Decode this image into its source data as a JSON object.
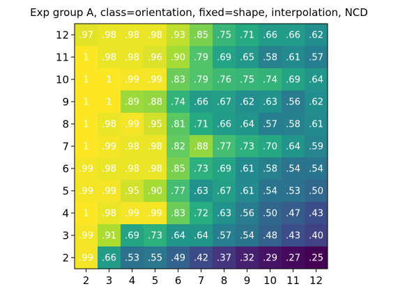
{
  "chart_data": {
    "type": "heatmap",
    "title": "Exp group A, class=orientation, fixed=shape, interpolation, NCD",
    "x_categories": [
      "2",
      "3",
      "4",
      "5",
      "6",
      "7",
      "8",
      "9",
      "10",
      "11",
      "12"
    ],
    "y_categories_top_to_bottom": [
      "12",
      "11",
      "10",
      "9",
      "8",
      "7",
      "6",
      "5",
      "4",
      "3",
      "2"
    ],
    "value_range": [
      0.25,
      1.0
    ],
    "colormap": "viridis",
    "cell_labels": [
      [
        ".97",
        ".98",
        ".98",
        ".98",
        ".93",
        ".85",
        ".75",
        ".71",
        ".66",
        ".66",
        ".62"
      ],
      [
        "1",
        ".98",
        ".98",
        ".96",
        ".90",
        ".79",
        ".69",
        ".65",
        ".58",
        ".61",
        ".57"
      ],
      [
        "1",
        "1",
        ".99",
        ".99",
        ".83",
        ".79",
        ".76",
        ".75",
        ".74",
        ".69",
        ".64"
      ],
      [
        "1",
        "1",
        ".89",
        ".88",
        ".74",
        ".66",
        ".67",
        ".62",
        ".63",
        ".56",
        ".62"
      ],
      [
        "1",
        ".98",
        ".99",
        ".95",
        ".81",
        ".71",
        ".66",
        ".64",
        ".57",
        ".58",
        ".61"
      ],
      [
        "1",
        ".99",
        ".98",
        ".98",
        ".82",
        ".88",
        ".77",
        ".73",
        ".70",
        ".64",
        ".59"
      ],
      [
        ".99",
        ".98",
        ".98",
        ".98",
        ".85",
        ".73",
        ".69",
        ".61",
        ".58",
        ".54",
        ".54"
      ],
      [
        ".99",
        ".99",
        ".95",
        ".90",
        ".77",
        ".63",
        ".67",
        ".61",
        ".54",
        ".53",
        ".50"
      ],
      [
        "1",
        ".98",
        ".99",
        ".99",
        ".83",
        ".72",
        ".63",
        ".56",
        ".50",
        ".47",
        ".43"
      ],
      [
        ".99",
        ".91",
        ".69",
        ".73",
        ".64",
        ".64",
        ".57",
        ".54",
        ".48",
        ".43",
        ".40"
      ],
      [
        ".99",
        ".66",
        ".53",
        ".55",
        ".49",
        ".42",
        ".37",
        ".32",
        ".29",
        ".27",
        ".25"
      ]
    ],
    "values": [
      [
        0.97,
        0.98,
        0.98,
        0.98,
        0.93,
        0.85,
        0.75,
        0.71,
        0.66,
        0.66,
        0.62
      ],
      [
        1.0,
        0.98,
        0.98,
        0.96,
        0.9,
        0.79,
        0.69,
        0.65,
        0.58,
        0.61,
        0.57
      ],
      [
        1.0,
        1.0,
        0.99,
        0.99,
        0.83,
        0.79,
        0.76,
        0.75,
        0.74,
        0.69,
        0.64
      ],
      [
        1.0,
        1.0,
        0.89,
        0.88,
        0.74,
        0.66,
        0.67,
        0.62,
        0.63,
        0.56,
        0.62
      ],
      [
        1.0,
        0.98,
        0.99,
        0.95,
        0.81,
        0.71,
        0.66,
        0.64,
        0.57,
        0.58,
        0.61
      ],
      [
        1.0,
        0.99,
        0.98,
        0.98,
        0.82,
        0.88,
        0.77,
        0.73,
        0.7,
        0.64,
        0.59
      ],
      [
        0.99,
        0.98,
        0.98,
        0.98,
        0.85,
        0.73,
        0.69,
        0.61,
        0.58,
        0.54,
        0.54
      ],
      [
        0.99,
        0.99,
        0.95,
        0.9,
        0.77,
        0.63,
        0.67,
        0.61,
        0.54,
        0.53,
        0.5
      ],
      [
        1.0,
        0.98,
        0.99,
        0.99,
        0.83,
        0.72,
        0.63,
        0.56,
        0.5,
        0.47,
        0.43
      ],
      [
        0.99,
        0.91,
        0.69,
        0.73,
        0.64,
        0.64,
        0.57,
        0.54,
        0.48,
        0.43,
        0.4
      ],
      [
        0.99,
        0.66,
        0.53,
        0.55,
        0.49,
        0.42,
        0.37,
        0.32,
        0.29,
        0.27,
        0.25
      ]
    ],
    "grid": false,
    "legend": "none"
  }
}
